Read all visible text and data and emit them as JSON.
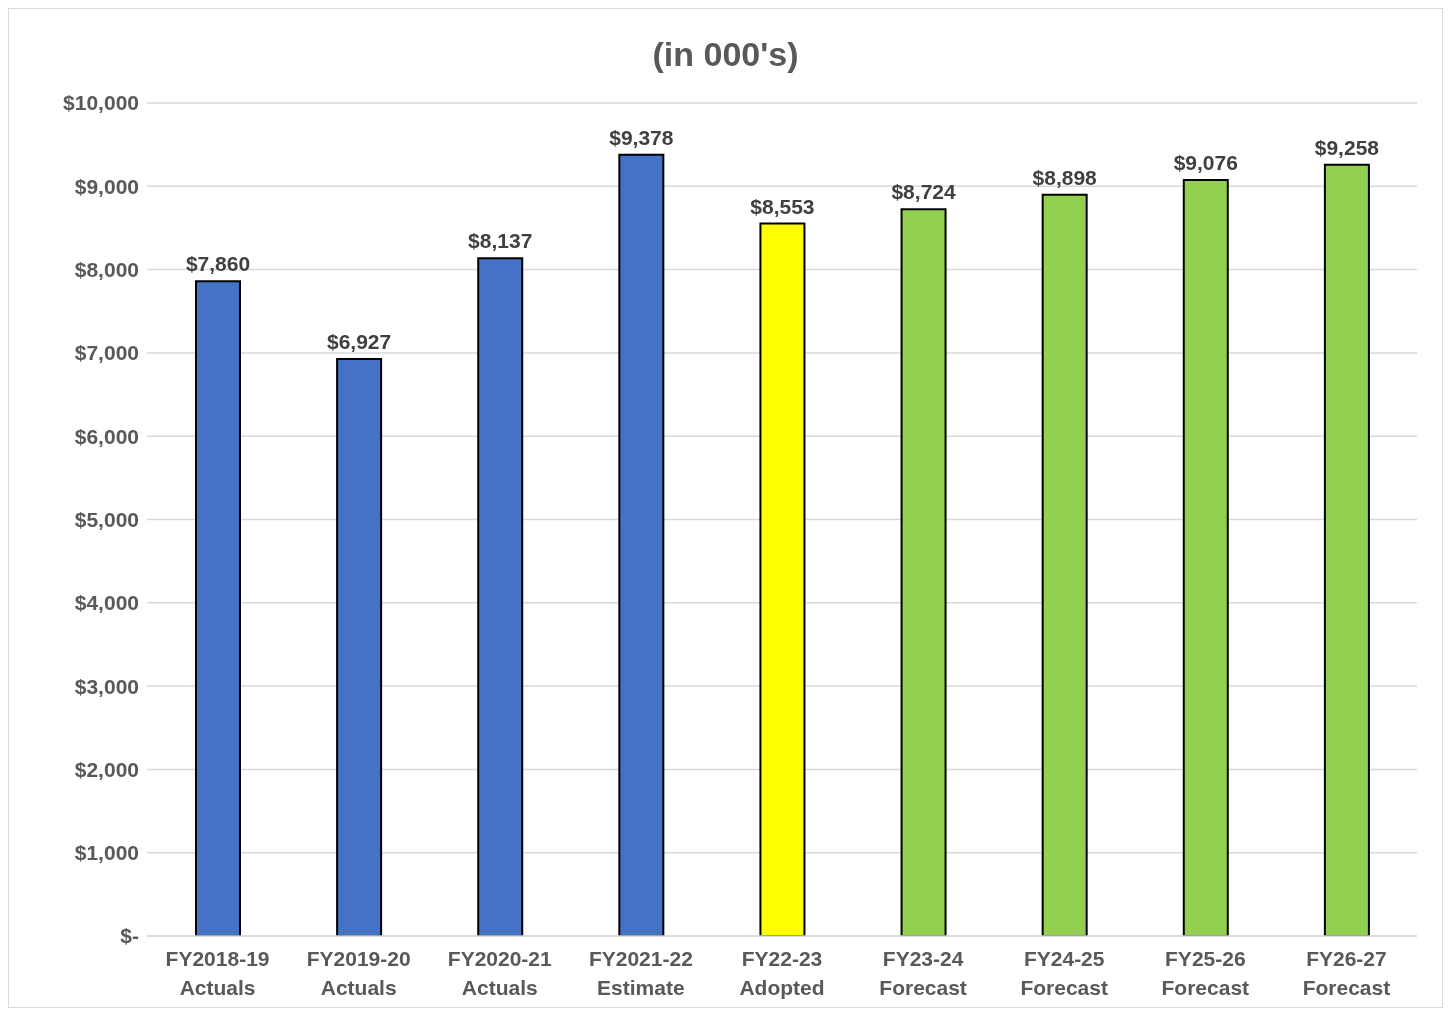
{
  "chart_data": {
    "type": "bar",
    "title": "(in 000's)",
    "categories": [
      "FY2018-19\nActuals",
      "FY2019-20\nActuals",
      "FY2020-21\nActuals",
      "FY2021-22\nEstimate",
      "FY22-23\nAdopted",
      "FY23-24\nForecast",
      "FY24-25\nForecast",
      "FY25-26\nForecast",
      "FY26-27\nForecast"
    ],
    "values": [
      7860,
      6927,
      8137,
      9378,
      8553,
      8724,
      8898,
      9076,
      9258
    ],
    "value_labels": [
      "$7,860",
      "$6,927",
      "$8,137",
      "$9,378",
      "$8,553",
      "$8,724",
      "$8,898",
      "$9,076",
      "$9,258"
    ],
    "colors": [
      "#4472c4",
      "#4472c4",
      "#4472c4",
      "#4472c4",
      "#ffff00",
      "#92d050",
      "#92d050",
      "#92d050",
      "#92d050"
    ],
    "ylim": [
      0,
      10000
    ],
    "yticks": [
      {
        "value": 0,
        "label": "$-"
      },
      {
        "value": 1000,
        "label": "$1,000"
      },
      {
        "value": 2000,
        "label": "$2,000"
      },
      {
        "value": 3000,
        "label": "$3,000"
      },
      {
        "value": 4000,
        "label": "$4,000"
      },
      {
        "value": 5000,
        "label": "$5,000"
      },
      {
        "value": 6000,
        "label": "$6,000"
      },
      {
        "value": 7000,
        "label": "$7,000"
      },
      {
        "value": 8000,
        "label": "$8,000"
      },
      {
        "value": 9000,
        "label": "$9,000"
      },
      {
        "value": 10000,
        "label": "$10,000"
      }
    ],
    "grid": "y",
    "legend": false
  }
}
